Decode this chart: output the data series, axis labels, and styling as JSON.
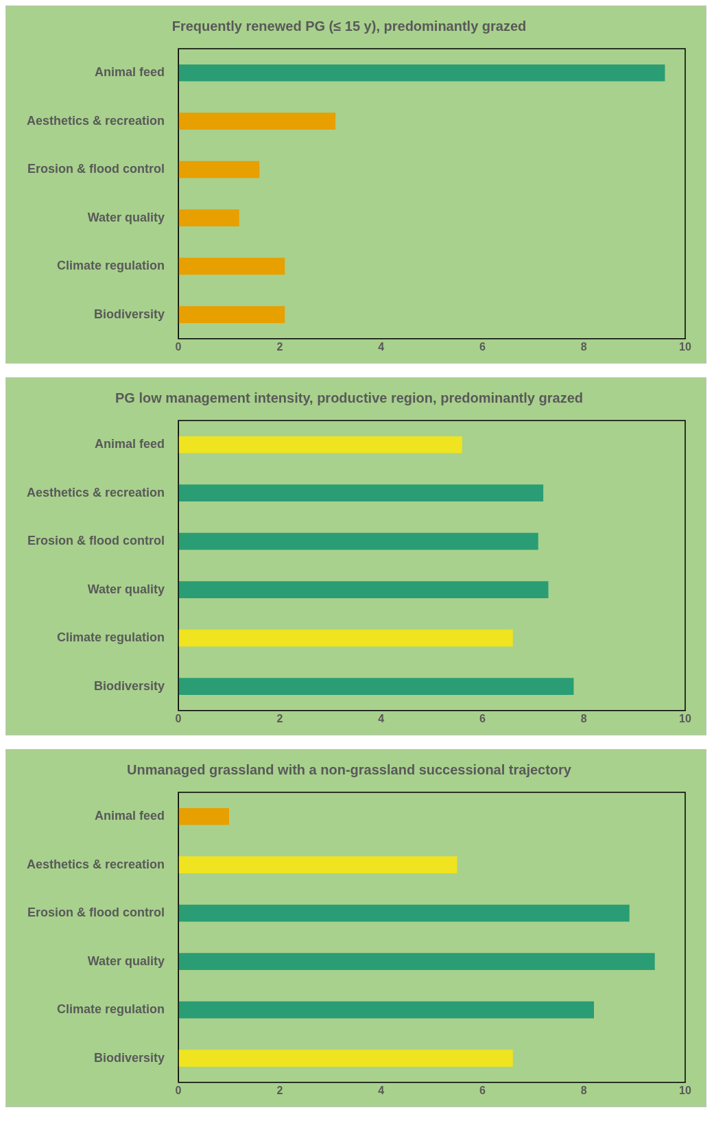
{
  "chart_data": [
    {
      "type": "bar",
      "orientation": "horizontal",
      "title": "Frequently renewed PG (≤ 15 y), predominantly grazed",
      "categories": [
        "Animal feed",
        "Aesthetics & recreation",
        "Erosion & flood control",
        "Water quality",
        "Climate regulation",
        "Biodiversity"
      ],
      "values": [
        9.6,
        3.1,
        1.6,
        1.2,
        2.1,
        2.1
      ],
      "colors": [
        "#2a9d74",
        "#e89f00",
        "#e89f00",
        "#e89f00",
        "#e89f00",
        "#e89f00"
      ],
      "xlim": [
        0,
        10
      ],
      "xticks": [
        0,
        2,
        4,
        6,
        8,
        10
      ]
    },
    {
      "type": "bar",
      "orientation": "horizontal",
      "title": "PG low management intensity, productive region, predominantly grazed",
      "categories": [
        "Animal feed",
        "Aesthetics & recreation",
        "Erosion & flood control",
        "Water quality",
        "Climate regulation",
        "Biodiversity"
      ],
      "values": [
        5.6,
        7.2,
        7.1,
        7.3,
        6.6,
        7.8
      ],
      "colors": [
        "#efe41f",
        "#2a9d74",
        "#2a9d74",
        "#2a9d74",
        "#efe41f",
        "#2a9d74"
      ],
      "xlim": [
        0,
        10
      ],
      "xticks": [
        0,
        2,
        4,
        6,
        8,
        10
      ]
    },
    {
      "type": "bar",
      "orientation": "horizontal",
      "title": "Unmanaged grassland with a non-grassland successional trajectory",
      "categories": [
        "Animal feed",
        "Aesthetics & recreation",
        "Erosion & flood control",
        "Water quality",
        "Climate regulation",
        "Biodiversity"
      ],
      "values": [
        1.0,
        5.5,
        8.9,
        9.4,
        8.2,
        6.6
      ],
      "colors": [
        "#e89f00",
        "#efe41f",
        "#2a9d74",
        "#2a9d74",
        "#2a9d74",
        "#efe41f"
      ],
      "xlim": [
        0,
        10
      ],
      "xticks": [
        0,
        2,
        4,
        6,
        8,
        10
      ]
    }
  ]
}
